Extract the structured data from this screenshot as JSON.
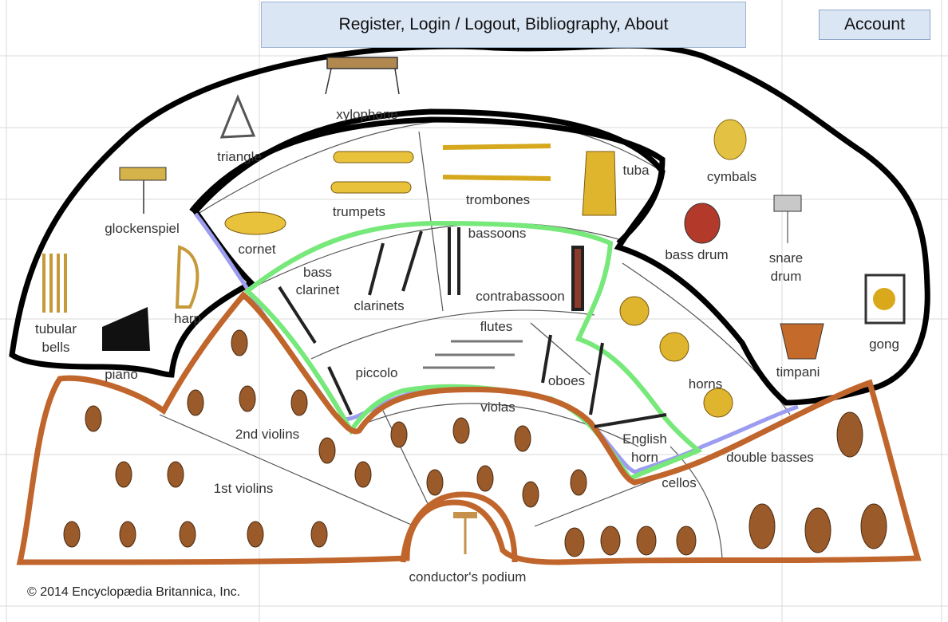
{
  "nav": {
    "links_label": "Register, Login / Logout, Bibliography, About",
    "account_label": "Account"
  },
  "copyright": "© 2014 Encyclopædia Britannica, Inc.",
  "colors": {
    "percussion_outline": "#000000",
    "brass_outline": "#000000",
    "woodwind_outline": "#77e87a",
    "woodwind_outline_shadow": "#9c9cf0",
    "strings_outline": "#c0652b",
    "nav_background": "#dbe6f5"
  },
  "instruments": {
    "percussion": {
      "xylophone": "xylophone",
      "triangle": "triangle",
      "glockenspiel": "glockenspiel",
      "tubular_bells_1": "tubular",
      "tubular_bells_2": "bells",
      "harp": "harp",
      "piano": "piano",
      "cymbals": "cymbals",
      "bass_drum": "bass drum",
      "snare_drum_1": "snare",
      "snare_drum_2": "drum",
      "gong": "gong",
      "timpani": "timpani"
    },
    "brass": {
      "trumpets": "trumpets",
      "trombones": "trombones",
      "tuba": "tuba",
      "cornet": "cornet",
      "horns": "horns"
    },
    "woodwinds": {
      "bassoons": "bassoons",
      "contrabassoon": "contrabassoon",
      "bass_clarinet_1": "bass",
      "bass_clarinet_2": "clarinet",
      "clarinets": "clarinets",
      "flutes": "flutes",
      "piccolo": "piccolo",
      "oboes": "oboes",
      "english_horn_1": "English",
      "english_horn_2": "horn"
    },
    "strings": {
      "violas": "violas",
      "second_violins": "2nd violins",
      "first_violins": "1st violins",
      "cellos": "cellos",
      "double_basses": "double basses"
    },
    "conductor_podium": "conductor's podium"
  }
}
